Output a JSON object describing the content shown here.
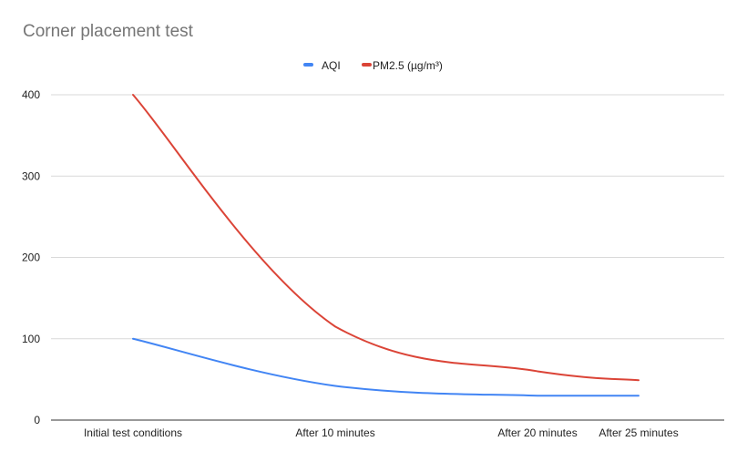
{
  "chart_data": {
    "type": "line",
    "title": "Corner placement test",
    "categories": [
      "Initial test conditions",
      "After 10 minutes",
      "After 20 minutes",
      "After 25 minutes"
    ],
    "x": [
      0,
      10,
      20,
      25
    ],
    "series": [
      {
        "name": "AQI",
        "color": "#4285f4",
        "values": [
          100,
          42,
          30,
          30
        ]
      },
      {
        "name": "PM2.5 (µg/m³)",
        "color": "#db4437",
        "values": [
          400,
          115,
          60,
          49
        ]
      }
    ],
    "yticks": [
      0,
      100,
      200,
      300,
      400
    ],
    "ylim": [
      0,
      400
    ],
    "grid": true,
    "legend_position": "top-center",
    "xlabel": "",
    "ylabel": ""
  }
}
